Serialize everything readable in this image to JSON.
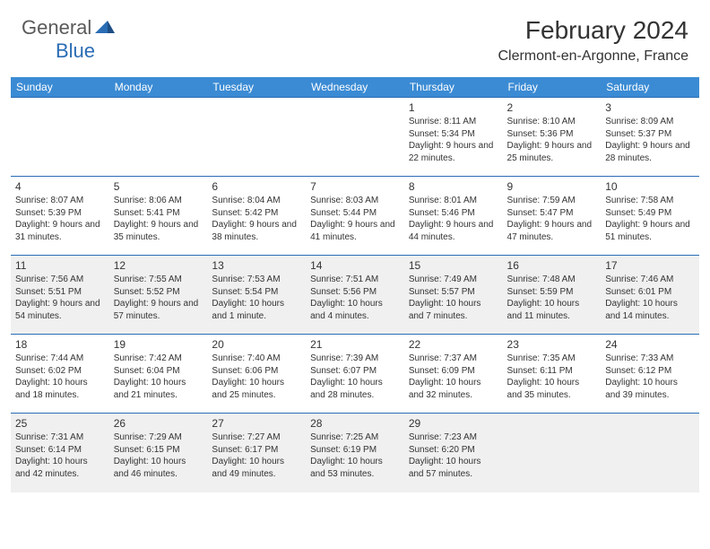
{
  "logo": {
    "general": "General",
    "blue": "Blue"
  },
  "title": "February 2024",
  "location": "Clermont-en-Argonne, France",
  "colors": {
    "headerBg": "#3b8bd4",
    "borderTop": "#2a6db5",
    "shadedBg": "#f0f0f0",
    "text": "#333333",
    "logoBlue": "#2a6db5"
  },
  "weekdays": [
    "Sunday",
    "Monday",
    "Tuesday",
    "Wednesday",
    "Thursday",
    "Friday",
    "Saturday"
  ],
  "weeks": [
    {
      "shaded": false,
      "days": [
        null,
        null,
        null,
        null,
        {
          "n": "1",
          "sunrise": "8:11 AM",
          "sunset": "5:34 PM",
          "daylight": "9 hours and 22 minutes."
        },
        {
          "n": "2",
          "sunrise": "8:10 AM",
          "sunset": "5:36 PM",
          "daylight": "9 hours and 25 minutes."
        },
        {
          "n": "3",
          "sunrise": "8:09 AM",
          "sunset": "5:37 PM",
          "daylight": "9 hours and 28 minutes."
        }
      ]
    },
    {
      "shaded": false,
      "days": [
        {
          "n": "4",
          "sunrise": "8:07 AM",
          "sunset": "5:39 PM",
          "daylight": "9 hours and 31 minutes."
        },
        {
          "n": "5",
          "sunrise": "8:06 AM",
          "sunset": "5:41 PM",
          "daylight": "9 hours and 35 minutes."
        },
        {
          "n": "6",
          "sunrise": "8:04 AM",
          "sunset": "5:42 PM",
          "daylight": "9 hours and 38 minutes."
        },
        {
          "n": "7",
          "sunrise": "8:03 AM",
          "sunset": "5:44 PM",
          "daylight": "9 hours and 41 minutes."
        },
        {
          "n": "8",
          "sunrise": "8:01 AM",
          "sunset": "5:46 PM",
          "daylight": "9 hours and 44 minutes."
        },
        {
          "n": "9",
          "sunrise": "7:59 AM",
          "sunset": "5:47 PM",
          "daylight": "9 hours and 47 minutes."
        },
        {
          "n": "10",
          "sunrise": "7:58 AM",
          "sunset": "5:49 PM",
          "daylight": "9 hours and 51 minutes."
        }
      ]
    },
    {
      "shaded": true,
      "days": [
        {
          "n": "11",
          "sunrise": "7:56 AM",
          "sunset": "5:51 PM",
          "daylight": "9 hours and 54 minutes."
        },
        {
          "n": "12",
          "sunrise": "7:55 AM",
          "sunset": "5:52 PM",
          "daylight": "9 hours and 57 minutes."
        },
        {
          "n": "13",
          "sunrise": "7:53 AM",
          "sunset": "5:54 PM",
          "daylight": "10 hours and 1 minute."
        },
        {
          "n": "14",
          "sunrise": "7:51 AM",
          "sunset": "5:56 PM",
          "daylight": "10 hours and 4 minutes."
        },
        {
          "n": "15",
          "sunrise": "7:49 AM",
          "sunset": "5:57 PM",
          "daylight": "10 hours and 7 minutes."
        },
        {
          "n": "16",
          "sunrise": "7:48 AM",
          "sunset": "5:59 PM",
          "daylight": "10 hours and 11 minutes."
        },
        {
          "n": "17",
          "sunrise": "7:46 AM",
          "sunset": "6:01 PM",
          "daylight": "10 hours and 14 minutes."
        }
      ]
    },
    {
      "shaded": false,
      "days": [
        {
          "n": "18",
          "sunrise": "7:44 AM",
          "sunset": "6:02 PM",
          "daylight": "10 hours and 18 minutes."
        },
        {
          "n": "19",
          "sunrise": "7:42 AM",
          "sunset": "6:04 PM",
          "daylight": "10 hours and 21 minutes."
        },
        {
          "n": "20",
          "sunrise": "7:40 AM",
          "sunset": "6:06 PM",
          "daylight": "10 hours and 25 minutes."
        },
        {
          "n": "21",
          "sunrise": "7:39 AM",
          "sunset": "6:07 PM",
          "daylight": "10 hours and 28 minutes."
        },
        {
          "n": "22",
          "sunrise": "7:37 AM",
          "sunset": "6:09 PM",
          "daylight": "10 hours and 32 minutes."
        },
        {
          "n": "23",
          "sunrise": "7:35 AM",
          "sunset": "6:11 PM",
          "daylight": "10 hours and 35 minutes."
        },
        {
          "n": "24",
          "sunrise": "7:33 AM",
          "sunset": "6:12 PM",
          "daylight": "10 hours and 39 minutes."
        }
      ]
    },
    {
      "shaded": true,
      "days": [
        {
          "n": "25",
          "sunrise": "7:31 AM",
          "sunset": "6:14 PM",
          "daylight": "10 hours and 42 minutes."
        },
        {
          "n": "26",
          "sunrise": "7:29 AM",
          "sunset": "6:15 PM",
          "daylight": "10 hours and 46 minutes."
        },
        {
          "n": "27",
          "sunrise": "7:27 AM",
          "sunset": "6:17 PM",
          "daylight": "10 hours and 49 minutes."
        },
        {
          "n": "28",
          "sunrise": "7:25 AM",
          "sunset": "6:19 PM",
          "daylight": "10 hours and 53 minutes."
        },
        {
          "n": "29",
          "sunrise": "7:23 AM",
          "sunset": "6:20 PM",
          "daylight": "10 hours and 57 minutes."
        },
        null,
        null
      ]
    }
  ]
}
